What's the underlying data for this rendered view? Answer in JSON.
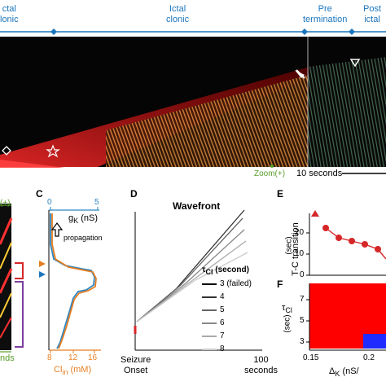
{
  "top": {
    "phases": [
      {
        "line1": "ctal",
        "line2": "lonic"
      },
      {
        "line1": "Ictal",
        "line2": "clonic"
      },
      {
        "line1": "Pre",
        "line2": "termination"
      },
      {
        "line1": "Post",
        "line2": "ictal"
      }
    ],
    "zoom_label": "Zoom(+)",
    "scale_label": "10 seconds"
  },
  "panelB": {
    "letter_fragment": "(+)",
    "xlabel_fragment": "nds"
  },
  "panelC": {
    "letter": "C",
    "top_axis_label": "g",
    "top_axis_sub": "K",
    "top_axis_unit": "(nS)",
    "top_ticks": [
      "0",
      "5"
    ],
    "bottom_axis_label": "Cl",
    "bottom_axis_sub": "in",
    "bottom_axis_unit": "(mM)",
    "bottom_ticks": [
      "8",
      "12",
      "16"
    ],
    "annotation": "propagation",
    "colors": {
      "gk": "#2e86c1",
      "cl": "#e67e22"
    }
  },
  "panelD": {
    "letter": "D",
    "title": "Wavefront",
    "legend_title_tau": "τ",
    "legend_title_sub": "Cl",
    "legend_title_unit": "(second)",
    "legend": [
      "3 (failed)",
      "4",
      "5",
      "6",
      "7",
      "8"
    ],
    "x_label_left_1": "Seizure",
    "x_label_left_2": "Onset",
    "x_label_right_1": "100",
    "x_label_right_2": "seconds"
  },
  "panelE": {
    "letter": "E",
    "ylabel": "T-C transition",
    "yunit": "(sec)",
    "yticks": [
      "20",
      "10",
      "0"
    ],
    "accent": "#d62728"
  },
  "panelF": {
    "letter": "F",
    "ylabel_tau": "τ",
    "ylabel_sub": "Cl",
    "yunit": "(sec)",
    "yticks": [
      "7",
      "5",
      "3"
    ],
    "xticks": [
      "0.15",
      "0.2"
    ],
    "xlabel": "Δ",
    "xlabel_sub": "K",
    "xlabel_unit": "(nS/"
  }
}
